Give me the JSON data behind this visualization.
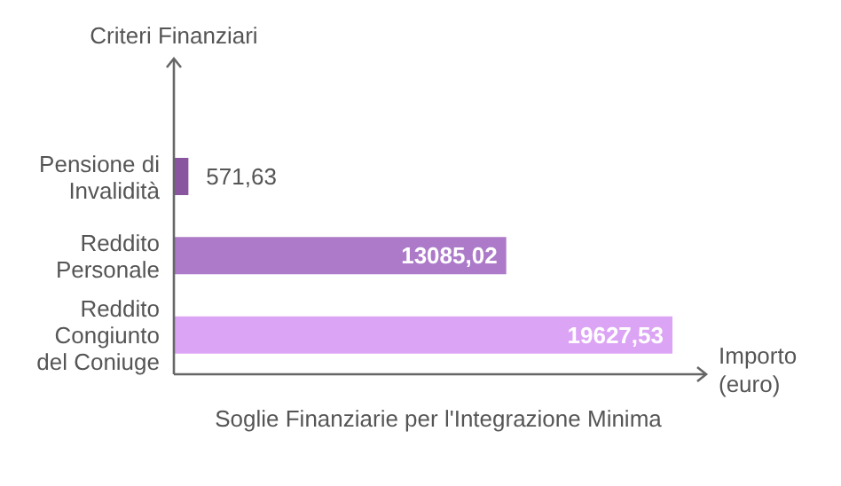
{
  "chart_data": {
    "type": "bar",
    "orientation": "horizontal",
    "title": "Soglie Finanziarie per l'Integrazione Minima",
    "xlabel": "Importo (euro)",
    "ylabel": "Criteri Finanziari",
    "categories": [
      "Pensione di Invalidità",
      "Reddito Personale",
      "Reddito Congiunto del Coniuge"
    ],
    "values": [
      571.63,
      13085.02,
      19627.53
    ],
    "colors": [
      "#8a559f",
      "#ac7ac9",
      "#dca4f4"
    ],
    "value_labels": [
      "571,63",
      "13085,02",
      "19627,53"
    ],
    "grid": false,
    "legend": false
  }
}
